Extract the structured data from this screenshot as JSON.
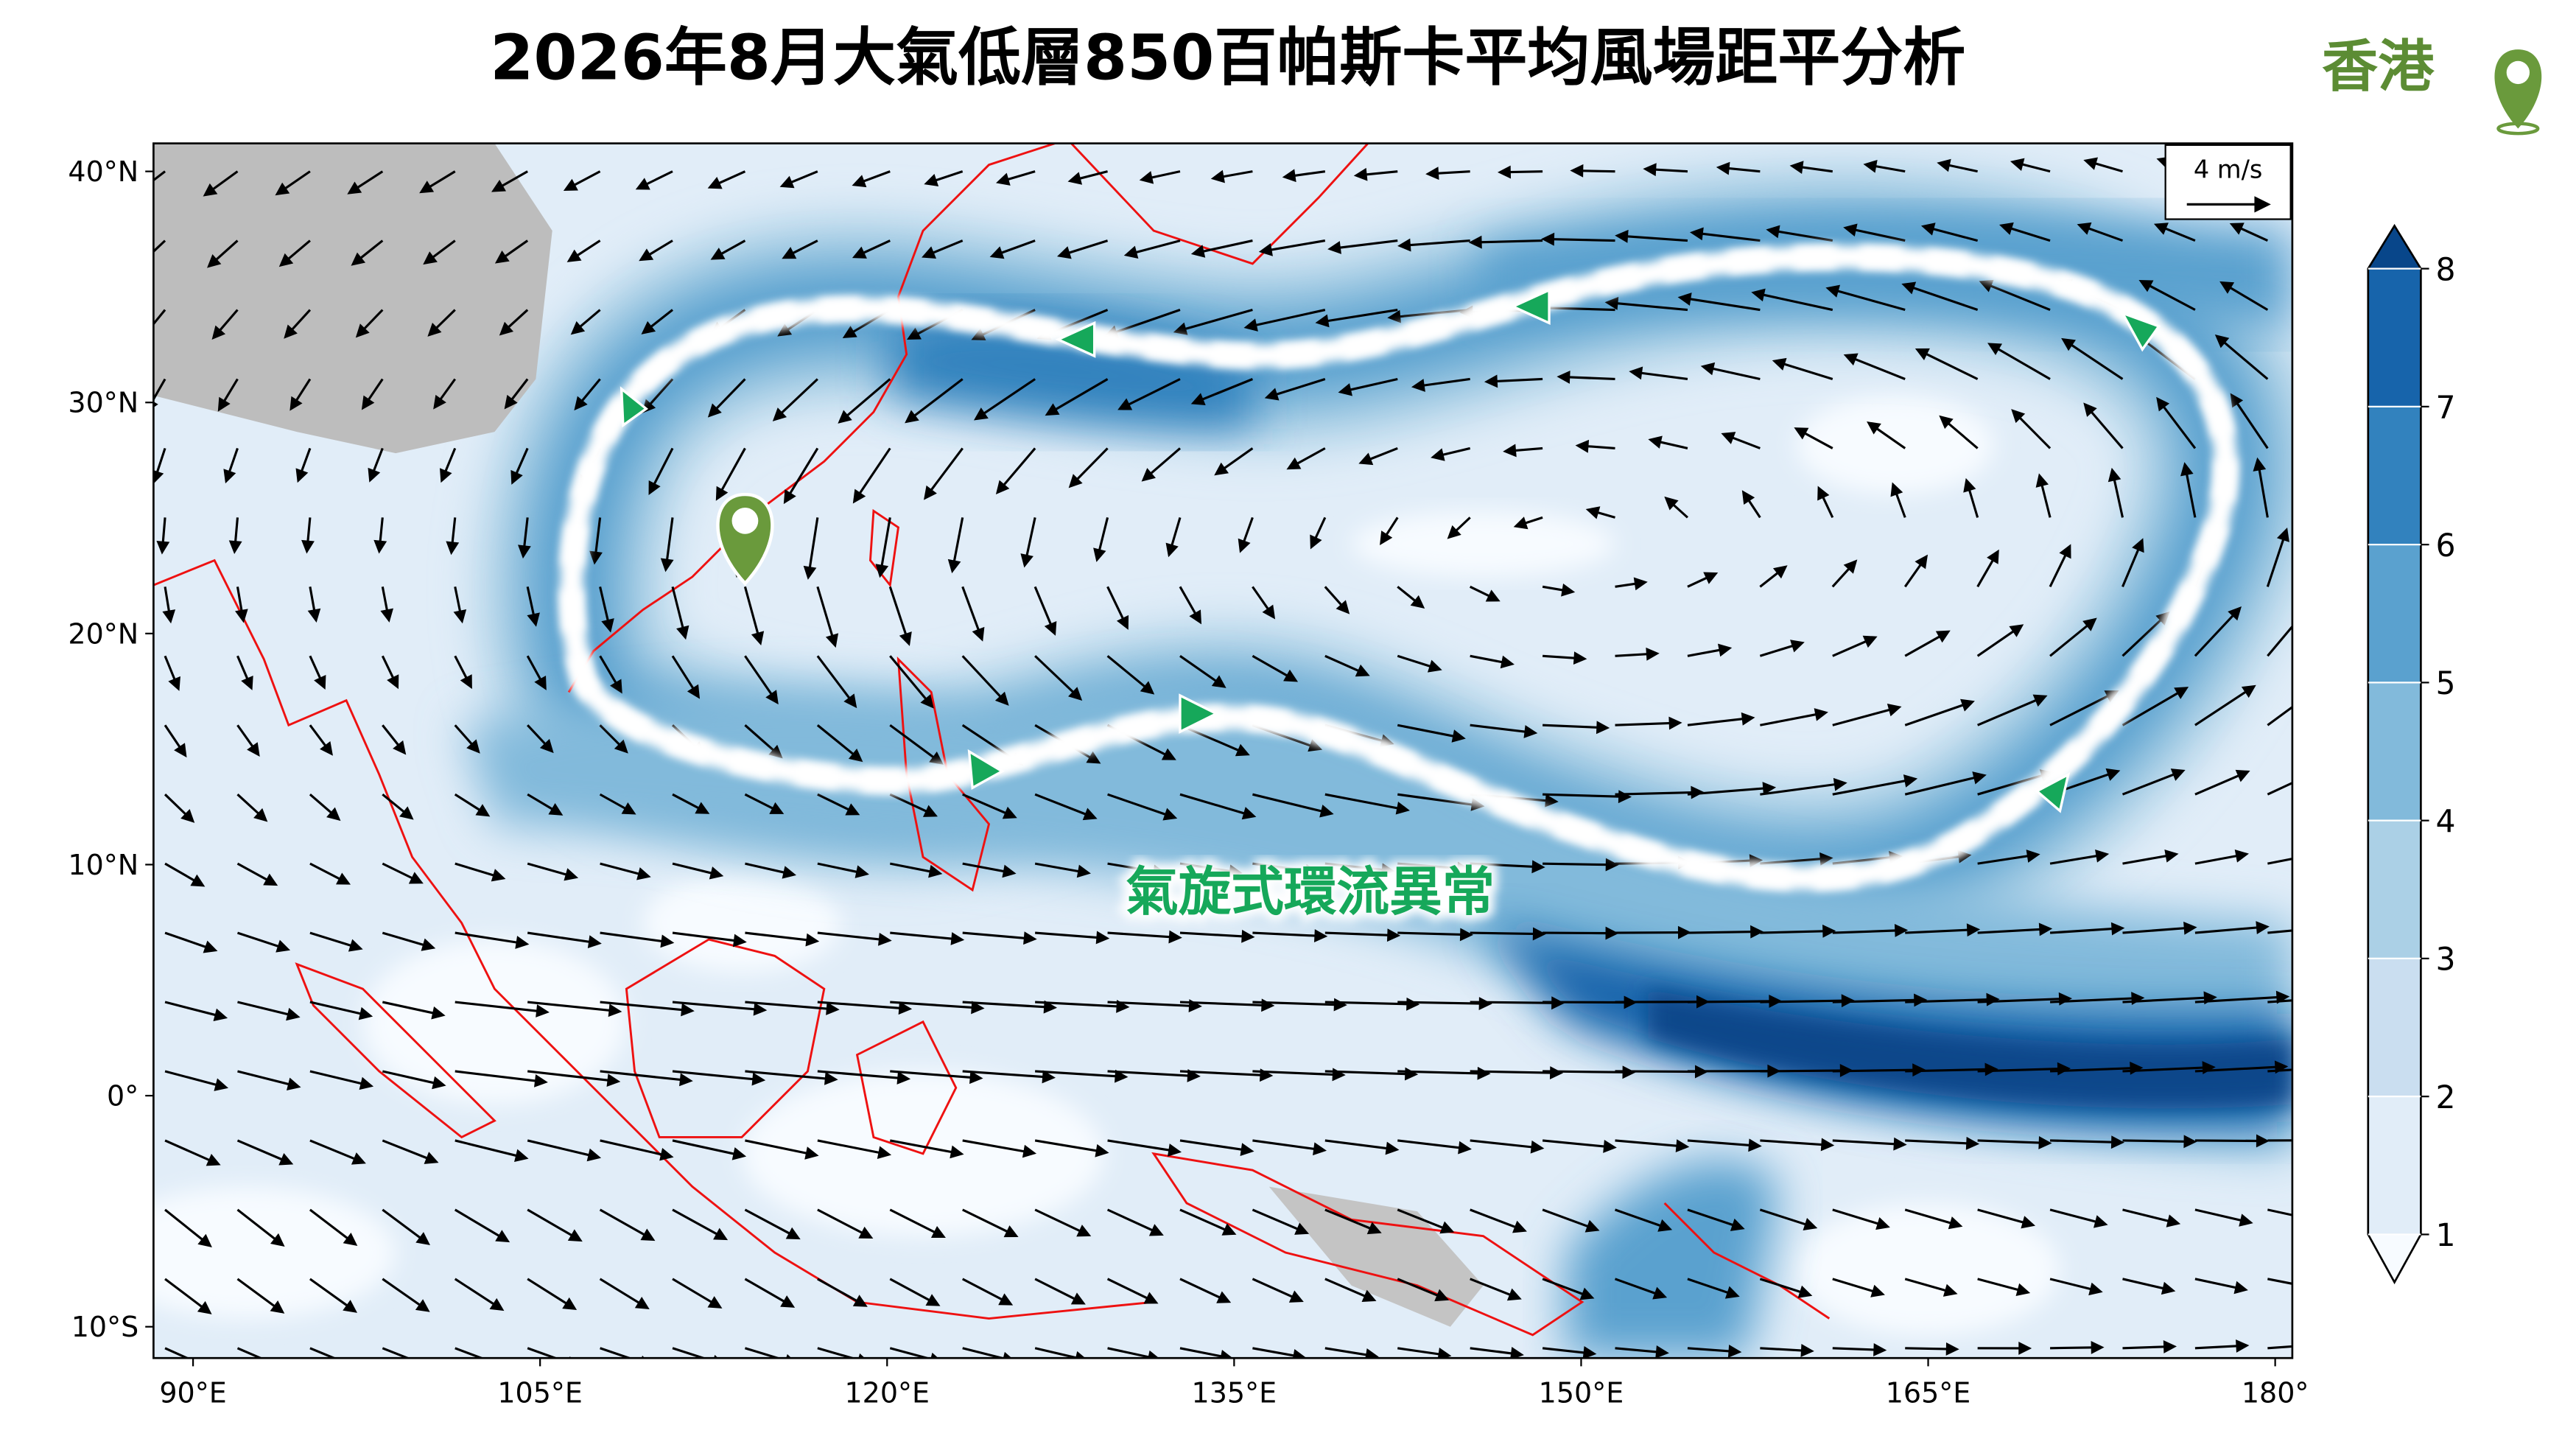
{
  "title": "2026年8月大氣低層850百帕斯卡平均風場距平分析",
  "location": "香港",
  "map": {
    "annotation": "氣旋式環流異常",
    "reference_vector": "4 m/s",
    "lat_ticks": [
      {
        "value": 40,
        "label": "40°N"
      },
      {
        "value": 30,
        "label": "30°N"
      },
      {
        "value": 20,
        "label": "20°N"
      },
      {
        "value": 10,
        "label": "10°N"
      },
      {
        "value": 0,
        "label": "0°"
      },
      {
        "value": -10,
        "label": "10°S"
      }
    ],
    "lon_ticks": [
      {
        "value": 90,
        "label": "90°E"
      },
      {
        "value": 105,
        "label": "105°E"
      },
      {
        "value": 120,
        "label": "120°E"
      },
      {
        "value": 135,
        "label": "135°E"
      },
      {
        "value": 150,
        "label": "150°E"
      },
      {
        "value": 165,
        "label": "165°E"
      },
      {
        "value": 180,
        "label": "180°"
      }
    ]
  },
  "colorbar": {
    "ticks": [
      1,
      2,
      3,
      4,
      5,
      6,
      7,
      8
    ],
    "colors": [
      "#f7fbff",
      "#e1edf8",
      "#cadef0",
      "#abd0e6",
      "#82badb",
      "#5aa1cf",
      "#3282be",
      "#1764ab",
      "#08468a"
    ]
  }
}
